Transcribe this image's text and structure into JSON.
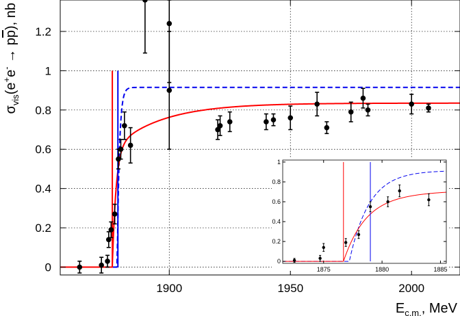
{
  "chart_data": [
    {
      "type": "scatter",
      "xlabel_main": "E",
      "xlabel_sub": "c.m.",
      "xlabel_unit": ", MeV",
      "ylabel_prefix": "σ",
      "ylabel_sub": "vis",
      "ylabel_reaction_start": "(e",
      "ylabel_sup1": "+",
      "ylabel_mid": "e",
      "ylabel_sup2": "-",
      "ylabel_arrow": " → p",
      "ylabel_pbar": "p",
      "ylabel_end": "), nb",
      "xlim": [
        1855,
        2020
      ],
      "ylim": [
        -0.04,
        1.36
      ],
      "x_ticks": [
        1900,
        1950,
        2000
      ],
      "y_ticks": [
        0,
        0.2,
        0.4,
        0.6,
        0.8,
        1,
        1.2
      ],
      "y_tick_labels": [
        "0",
        "0.2",
        "0.4",
        "0.6",
        "0.8",
        "1",
        "1.2"
      ],
      "grid": true,
      "points": [
        {
          "x": 1863,
          "y": 0.0,
          "err": 0.03
        },
        {
          "x": 1872,
          "y": 0.01,
          "err": 0.04
        },
        {
          "x": 1874.5,
          "y": 0.03,
          "err": 0.03
        },
        {
          "x": 1875,
          "y": 0.14,
          "err": 0.04
        },
        {
          "x": 1876,
          "y": 0.19,
          "err": 0.04
        },
        {
          "x": 1877.5,
          "y": 0.27,
          "err": 0.05
        },
        {
          "x": 1879,
          "y": 0.55,
          "err": 0.05
        },
        {
          "x": 1880,
          "y": 0.6,
          "err": 0.05
        },
        {
          "x": 1881.5,
          "y": 0.72,
          "err": 0.07
        },
        {
          "x": 1884,
          "y": 0.62,
          "err": 0.09
        },
        {
          "x": 1890,
          "y": 1.36,
          "err": 0.27
        },
        {
          "x": 1900,
          "y": 1.24,
          "err": 0.3
        },
        {
          "x": 1900,
          "y": 0.9,
          "err": 0.3
        },
        {
          "x": 1920,
          "y": 0.7,
          "err": 0.05
        },
        {
          "x": 1921,
          "y": 0.72,
          "err": 0.05
        },
        {
          "x": 1925,
          "y": 0.74,
          "err": 0.05
        },
        {
          "x": 1940,
          "y": 0.74,
          "err": 0.04
        },
        {
          "x": 1943,
          "y": 0.75,
          "err": 0.03
        },
        {
          "x": 1950,
          "y": 0.76,
          "err": 0.06
        },
        {
          "x": 1961,
          "y": 0.83,
          "err": 0.06
        },
        {
          "x": 1965,
          "y": 0.71,
          "err": 0.03
        },
        {
          "x": 1975,
          "y": 0.79,
          "err": 0.05
        },
        {
          "x": 1980,
          "y": 0.86,
          "err": 0.05
        },
        {
          "x": 1982,
          "y": 0.8,
          "err": 0.03
        },
        {
          "x": 2000,
          "y": 0.83,
          "err": 0.05
        },
        {
          "x": 2007,
          "y": 0.81,
          "err": 0.02
        }
      ],
      "red_curve": {
        "color": "#ff0000",
        "threshold": 1876.5,
        "asymptote": 0.835,
        "width": 1.5,
        "scale": 20
      },
      "blue_curve": {
        "color": "#0000ee",
        "threshold": 1878.5,
        "plateau": 0.915,
        "width": 0.9,
        "dash": true
      },
      "red_vline": {
        "x": 1876.5,
        "y_top": 1.0
      },
      "blue_vline": {
        "x": 1878.8,
        "y_top": 1.0
      }
    },
    {
      "type": "scatter",
      "name": "inset",
      "xlim": [
        1871.5,
        1885.5
      ],
      "ylim": [
        -0.02,
        1.02
      ],
      "x_ticks": [
        1875,
        1880,
        1885
      ],
      "x_tick_labels": [
        "1875",
        "1880",
        "1885"
      ],
      "y_ticks": [
        0,
        0.2,
        0.4,
        0.6,
        0.8,
        1
      ],
      "y_tick_labels": [
        "0",
        "0.2",
        "0.4",
        "0.6",
        "0.8",
        "1"
      ],
      "points": [
        {
          "x": 1872.5,
          "y": 0.01,
          "err": 0.02
        },
        {
          "x": 1874.7,
          "y": 0.03,
          "err": 0.03
        },
        {
          "x": 1875,
          "y": 0.14,
          "err": 0.04
        },
        {
          "x": 1876.9,
          "y": 0.19,
          "err": 0.04
        },
        {
          "x": 1878,
          "y": 0.27,
          "err": 0.04
        },
        {
          "x": 1879,
          "y": 0.55,
          "err": 0.05
        },
        {
          "x": 1880.5,
          "y": 0.6,
          "err": 0.05
        },
        {
          "x": 1881.5,
          "y": 0.71,
          "err": 0.06
        },
        {
          "x": 1884,
          "y": 0.62,
          "err": 0.06
        }
      ],
      "red_vline": {
        "x": 1876.7,
        "y_top": 1.0
      },
      "blue_vline": {
        "x": 1879.0,
        "y_top": 1.0
      }
    }
  ]
}
